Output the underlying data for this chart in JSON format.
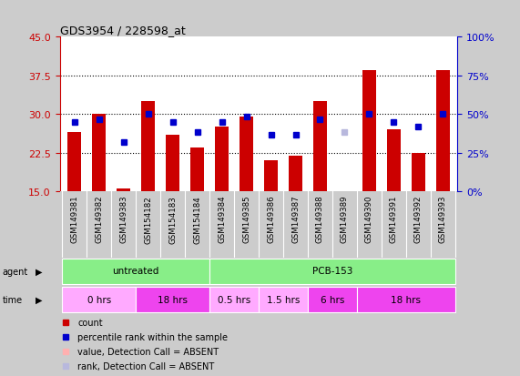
{
  "title": "GDS3954 / 228598_at",
  "samples": [
    "GSM149381",
    "GSM149382",
    "GSM149383",
    "GSM154182",
    "GSM154183",
    "GSM154184",
    "GSM149384",
    "GSM149385",
    "GSM149386",
    "GSM149387",
    "GSM149388",
    "GSM149389",
    "GSM149390",
    "GSM149391",
    "GSM149392",
    "GSM149393"
  ],
  "bar_values": [
    26.5,
    30.0,
    15.5,
    32.5,
    26.0,
    23.5,
    27.5,
    29.5,
    21.0,
    22.0,
    32.5,
    15.0,
    38.5,
    27.0,
    22.5,
    38.5
  ],
  "bar_absent": [
    false,
    false,
    false,
    false,
    false,
    false,
    false,
    false,
    false,
    false,
    false,
    true,
    false,
    false,
    false,
    false
  ],
  "dot_values": [
    28.5,
    29.0,
    24.5,
    30.0,
    28.5,
    26.5,
    28.5,
    29.5,
    26.0,
    26.0,
    29.0,
    26.5,
    30.0,
    28.5,
    27.5,
    30.0
  ],
  "dot_absent": [
    false,
    false,
    false,
    false,
    false,
    false,
    false,
    false,
    false,
    false,
    false,
    true,
    false,
    false,
    false,
    false
  ],
  "ylim_left": [
    15,
    45
  ],
  "ylim_right": [
    0,
    100
  ],
  "yticks_left": [
    15,
    22.5,
    30,
    37.5,
    45
  ],
  "yticks_right": [
    0,
    25,
    50,
    75,
    100
  ],
  "bar_color": "#cc0000",
  "bar_absent_color": "#ffb0b0",
  "dot_color": "#0000cc",
  "dot_absent_color": "#b8b8dd",
  "agent_groups": [
    {
      "label": "untreated",
      "start": 0,
      "end": 6,
      "color": "#88ee88"
    },
    {
      "label": "PCB-153",
      "start": 6,
      "end": 16,
      "color": "#88ee88"
    }
  ],
  "time_groups": [
    {
      "label": "0 hrs",
      "start": 0,
      "end": 3,
      "color": "#ffaaff"
    },
    {
      "label": "18 hrs",
      "start": 3,
      "end": 6,
      "color": "#ee44ee"
    },
    {
      "label": "0.5 hrs",
      "start": 6,
      "end": 8,
      "color": "#ffaaff"
    },
    {
      "label": "1.5 hrs",
      "start": 8,
      "end": 10,
      "color": "#ffaaff"
    },
    {
      "label": "6 hrs",
      "start": 10,
      "end": 12,
      "color": "#ee44ee"
    },
    {
      "label": "18 hrs",
      "start": 12,
      "end": 16,
      "color": "#ee44ee"
    }
  ],
  "legend_items": [
    {
      "label": "count",
      "color": "#cc0000"
    },
    {
      "label": "percentile rank within the sample",
      "color": "#0000cc"
    },
    {
      "label": "value, Detection Call = ABSENT",
      "color": "#ffb0b0"
    },
    {
      "label": "rank, Detection Call = ABSENT",
      "color": "#b8b8dd"
    }
  ],
  "left_axis_color": "#cc0000",
  "right_axis_color": "#0000cc",
  "sample_band_color": "#cccccc",
  "outer_bg": "#cccccc"
}
